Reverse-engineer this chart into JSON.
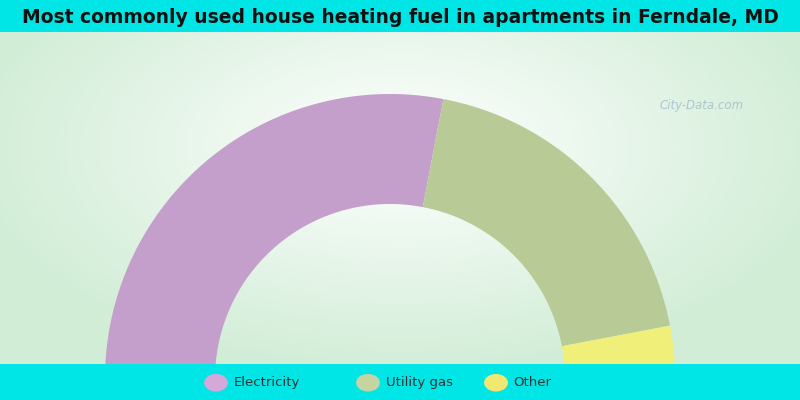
{
  "title": "Most commonly used house heating fuel in apartments in Ferndale, MD",
  "title_fontsize": 13.5,
  "cyan_color": "#00e5e5",
  "categories": [
    "Electricity",
    "Utility gas",
    "Other"
  ],
  "values": [
    56,
    38,
    6
  ],
  "colors": [
    "#c49fcc",
    "#b8ca96",
    "#f0ef7a"
  ],
  "legend_colors": [
    "#d4a8d8",
    "#c5d4a0",
    "#f0e870"
  ],
  "watermark": "City-Data.com"
}
